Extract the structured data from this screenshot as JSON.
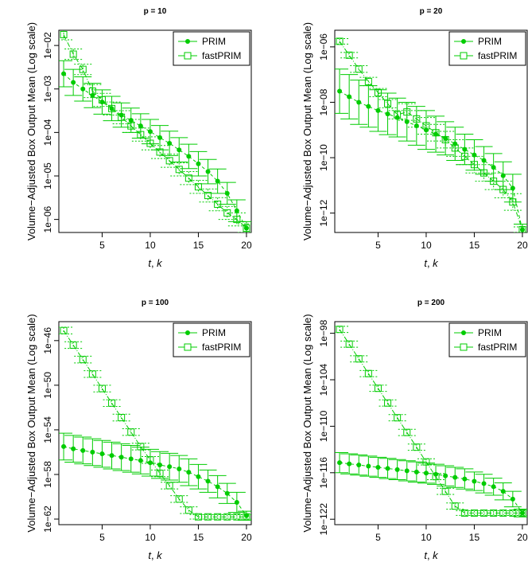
{
  "colors": {
    "series": "#00cc00",
    "axis": "#000000",
    "background": "#ffffff"
  },
  "chart_data": [
    {
      "type": "line",
      "title": "p = 10",
      "xlabel_var1": "t",
      "xlabel_sep": ", ",
      "xlabel_var2": "k",
      "ylabel": "Volume−Adjusted Box Output Mean (Log scale)",
      "log_scale_y": true,
      "xlim": [
        0.5,
        20.5
      ],
      "ylim_log10": [
        -6.3,
        -1.65
      ],
      "xticks": [
        5,
        10,
        15,
        20
      ],
      "xtick_labels": [
        "5",
        "10",
        "15",
        "20"
      ],
      "yticks_log10": [
        -2,
        -3,
        -4,
        -5,
        -6
      ],
      "ytick_labels": [
        "1e−02",
        "1e−03",
        "1e−04",
        "1e−05",
        "1e−06"
      ],
      "legend": {
        "position": "top-right",
        "entries": [
          "PRIM",
          "fastPRIM"
        ]
      },
      "x": [
        1,
        2,
        3,
        4,
        5,
        6,
        7,
        8,
        9,
        10,
        11,
        12,
        13,
        14,
        15,
        16,
        17,
        18,
        19,
        20
      ],
      "series": [
        {
          "name": "PRIM",
          "marker": "filled-circle",
          "line": "dashed",
          "values_log10": [
            -2.65,
            -2.85,
            -3.0,
            -3.15,
            -3.3,
            -3.45,
            -3.6,
            -3.72,
            -3.85,
            -3.98,
            -4.12,
            -4.25,
            -4.4,
            -4.55,
            -4.72,
            -4.9,
            -5.12,
            -5.4,
            -5.8,
            -6.2
          ],
          "err_log10": [
            0.3,
            0.3,
            0.28,
            0.28,
            0.28,
            0.28,
            0.28,
            0.28,
            0.28,
            0.28,
            0.28,
            0.28,
            0.28,
            0.28,
            0.28,
            0.28,
            0.28,
            0.25,
            0.25,
            0.15
          ]
        },
        {
          "name": "fastPRIM",
          "marker": "open-square",
          "line": "dotdash",
          "values_log10": [
            -1.75,
            -2.2,
            -2.55,
            -3.05,
            -3.25,
            -3.45,
            -3.65,
            -3.85,
            -4.05,
            -4.25,
            -4.45,
            -4.65,
            -4.85,
            -5.05,
            -5.25,
            -5.45,
            -5.65,
            -5.85,
            -6.0,
            -6.2
          ],
          "err_log10": [
            0.12,
            0.12,
            0.12,
            0.15,
            0.15,
            0.15,
            0.15,
            0.15,
            0.15,
            0.15,
            0.15,
            0.15,
            0.15,
            0.15,
            0.15,
            0.15,
            0.15,
            0.15,
            0.15,
            0.1
          ]
        }
      ]
    },
    {
      "type": "line",
      "title": "p = 20",
      "xlabel_var1": "t",
      "xlabel_sep": ", ",
      "xlabel_var2": "k",
      "ylabel": "Volume−Adjusted Box Output Mean (Log scale)",
      "log_scale_y": true,
      "xlim": [
        0.5,
        20.5
      ],
      "ylim_log10": [
        -12.7,
        -5.4
      ],
      "xticks": [
        5,
        10,
        15,
        20
      ],
      "xtick_labels": [
        "5",
        "10",
        "15",
        "20"
      ],
      "yticks_log10": [
        -6,
        -8,
        -10,
        -12
      ],
      "ytick_labels": [
        "1e−06",
        "1e−08",
        "1e−10",
        "1e−12"
      ],
      "legend": {
        "position": "top-right",
        "entries": [
          "PRIM",
          "fastPRIM"
        ]
      },
      "x": [
        1,
        2,
        3,
        4,
        5,
        6,
        7,
        8,
        9,
        10,
        11,
        12,
        13,
        14,
        15,
        16,
        17,
        18,
        19,
        20
      ],
      "series": [
        {
          "name": "PRIM",
          "marker": "filled-circle",
          "line": "dashed",
          "values_log10": [
            -7.6,
            -7.8,
            -8.0,
            -8.15,
            -8.3,
            -8.42,
            -8.55,
            -8.7,
            -8.85,
            -9.0,
            -9.15,
            -9.3,
            -9.5,
            -9.7,
            -9.9,
            -10.1,
            -10.35,
            -10.65,
            -11.1,
            -12.6
          ],
          "err_log10": [
            0.8,
            0.8,
            0.8,
            0.75,
            0.75,
            0.75,
            0.7,
            0.7,
            0.7,
            0.7,
            0.65,
            0.6,
            0.6,
            0.55,
            0.55,
            0.5,
            0.5,
            0.5,
            0.5,
            0.2
          ]
        },
        {
          "name": "fastPRIM",
          "marker": "open-square",
          "line": "dotdash",
          "values_log10": [
            -5.8,
            -6.3,
            -6.8,
            -7.25,
            -7.65,
            -8.05,
            -8.45,
            -8.35,
            -8.6,
            -8.85,
            -9.1,
            -9.35,
            -9.65,
            -9.95,
            -10.25,
            -10.55,
            -10.85,
            -11.15,
            -11.6,
            -12.6
          ],
          "err_log10": [
            0.1,
            0.1,
            0.12,
            0.15,
            0.15,
            0.15,
            0.15,
            0.3,
            0.3,
            0.3,
            0.3,
            0.3,
            0.3,
            0.3,
            0.3,
            0.3,
            0.3,
            0.3,
            0.3,
            0.1
          ]
        }
      ]
    },
    {
      "type": "line",
      "title": "p = 100",
      "xlabel_var1": "t",
      "xlabel_sep": ", ",
      "xlabel_var2": "k",
      "ylabel": "Volume−Adjusted Box Output Mean (Log scale)",
      "log_scale_y": true,
      "xlim": [
        0.5,
        20.5
      ],
      "ylim_log10": [
        -62.5,
        -44.3
      ],
      "xticks": [
        5,
        10,
        15,
        20
      ],
      "xtick_labels": [
        "5",
        "10",
        "15",
        "20"
      ],
      "yticks_log10": [
        -46,
        -50,
        -54,
        -58,
        -62
      ],
      "ytick_labels": [
        "1e−46",
        "1e−50",
        "1e−54",
        "1e−58",
        "1e−62"
      ],
      "legend": {
        "position": "top-right",
        "entries": [
          "PRIM",
          "fastPRIM"
        ]
      },
      "x": [
        1,
        2,
        3,
        4,
        5,
        6,
        7,
        8,
        9,
        10,
        11,
        12,
        13,
        14,
        15,
        16,
        17,
        18,
        19,
        20
      ],
      "series": [
        {
          "name": "PRIM",
          "marker": "filled-circle",
          "line": "dashed",
          "values_log10": [
            -55.5,
            -55.7,
            -55.85,
            -56.0,
            -56.15,
            -56.3,
            -56.45,
            -56.6,
            -56.75,
            -56.95,
            -57.15,
            -57.3,
            -57.5,
            -57.8,
            -58.2,
            -58.6,
            -59.1,
            -59.7,
            -60.5,
            -61.7
          ],
          "err_log10": [
            1.2,
            1.2,
            1.2,
            1.2,
            1.2,
            1.2,
            1.2,
            1.2,
            1.2,
            1.2,
            1.2,
            1.2,
            1.2,
            1.2,
            1.1,
            1.0,
            1.0,
            0.9,
            0.9,
            0.4
          ]
        },
        {
          "name": "fastPRIM",
          "marker": "open-square",
          "line": "dotdash",
          "values_log10": [
            -45.1,
            -46.4,
            -47.7,
            -49.0,
            -50.3,
            -51.6,
            -52.9,
            -54.2,
            -55.5,
            -56.7,
            -57.9,
            -59.0,
            -60.2,
            -61.2,
            -61.8,
            -61.8,
            -61.8,
            -61.8,
            -61.8,
            -61.8
          ],
          "err_log10": [
            0.3,
            0.3,
            0.3,
            0.3,
            0.3,
            0.3,
            0.3,
            0.3,
            0.3,
            0.3,
            0.3,
            0.3,
            0.3,
            0.3,
            0.2,
            0.2,
            0.2,
            0.2,
            0.2,
            0.2
          ]
        }
      ]
    },
    {
      "type": "line",
      "title": "p = 200",
      "xlabel_var1": "t",
      "xlabel_sep": ", ",
      "xlabel_var2": "k",
      "ylabel": "Volume−Adjusted Box Output Mean (Log scale)",
      "log_scale_y": true,
      "xlim": [
        0.5,
        20.5
      ],
      "ylim_log10": [
        -122.7,
        -96.5
      ],
      "xticks": [
        5,
        10,
        15,
        20
      ],
      "xtick_labels": [
        "5",
        "10",
        "15",
        "20"
      ],
      "yticks_log10": [
        -98,
        -104,
        -110,
        -116,
        -122
      ],
      "ytick_labels": [
        "1e−98",
        "1e−104",
        "1e−110",
        "1e−116",
        "1e−122"
      ],
      "legend": {
        "position": "top-right",
        "entries": [
          "PRIM",
          "fastPRIM"
        ]
      },
      "x": [
        1,
        2,
        3,
        4,
        5,
        6,
        7,
        8,
        9,
        10,
        11,
        12,
        13,
        14,
        15,
        16,
        17,
        18,
        19,
        20
      ],
      "series": [
        {
          "name": "PRIM",
          "marker": "filled-circle",
          "line": "dashed",
          "values_log10": [
            -114.7,
            -114.85,
            -115.0,
            -115.15,
            -115.3,
            -115.45,
            -115.6,
            -115.75,
            -115.9,
            -116.05,
            -116.2,
            -116.4,
            -116.6,
            -116.8,
            -117.1,
            -117.4,
            -117.8,
            -118.4,
            -119.4,
            -121.2
          ],
          "err_log10": [
            1.3,
            1.3,
            1.3,
            1.3,
            1.3,
            1.3,
            1.3,
            1.3,
            1.3,
            1.3,
            1.3,
            1.3,
            1.3,
            1.3,
            1.2,
            1.2,
            1.1,
            1.1,
            1.0,
            0.5
          ]
        },
        {
          "name": "fastPRIM",
          "marker": "open-square",
          "line": "dotdash",
          "values_log10": [
            -97.5,
            -99.4,
            -101.3,
            -103.2,
            -105.1,
            -107.0,
            -108.9,
            -110.8,
            -112.7,
            -114.6,
            -116.5,
            -118.4,
            -120.3,
            -121.2,
            -121.2,
            -121.2,
            -121.2,
            -121.2,
            -121.2,
            -121.2
          ],
          "err_log10": [
            0.4,
            0.4,
            0.4,
            0.4,
            0.4,
            0.4,
            0.4,
            0.4,
            0.4,
            0.4,
            0.4,
            0.4,
            0.4,
            0.3,
            0.3,
            0.3,
            0.3,
            0.3,
            0.3,
            0.3
          ]
        }
      ]
    }
  ]
}
